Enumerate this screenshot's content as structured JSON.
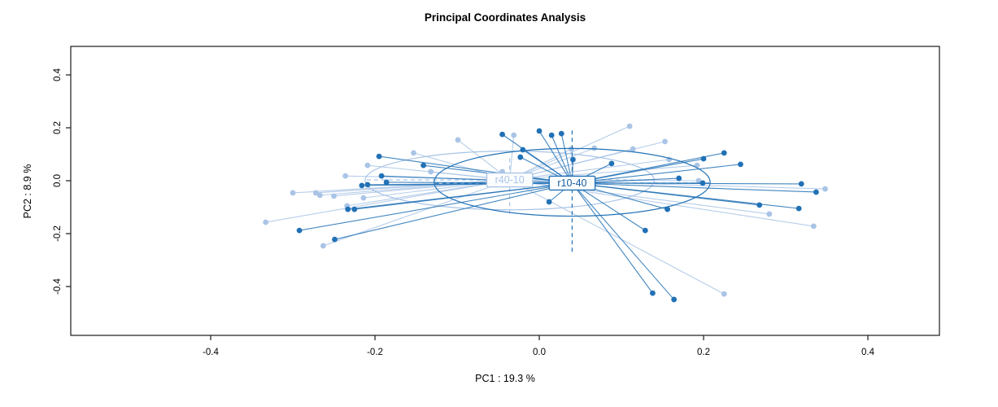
{
  "title": "Principal Coordinates Analysis",
  "axes": {
    "x_label": "PC1 : 19.3 %",
    "y_label": "PC2 : 8.9 %",
    "x_tick_labels": [
      "-0.4",
      "-0.2",
      "0.0",
      "0.2",
      "0.4"
    ],
    "x_tick_values": [
      -0.4,
      -0.2,
      0.0,
      0.2,
      0.4
    ],
    "y_tick_labels": [
      "-0.4",
      "-0.2",
      "0.0",
      "0.2",
      "0.4"
    ],
    "y_tick_values": [
      -0.4,
      -0.2,
      0.0,
      0.2,
      0.4
    ],
    "axis_color": "#1a1a1a"
  },
  "chart_data": {
    "type": "scatter",
    "subtype": "pcoa-ordination-spider",
    "title": "Principal Coordinates Analysis",
    "xlabel": "PC1 : 19.3 %",
    "ylabel": "PC2 : 8.9 %",
    "xlim": [
      -0.5703,
      0.4871
    ],
    "ylim": [
      -0.5846,
      0.5077
    ],
    "grid": false,
    "legend": "none (group labels drawn at centroids)",
    "groups": [
      {
        "name": "r40-10",
        "color": "#a9c4e6",
        "label_text_color": "#a9c4e6",
        "centroid": [
          -0.036,
          0.003
        ],
        "ellipse": {
          "cx": -0.036,
          "cy": 0.001,
          "rx": 0.176,
          "ry": 0.111
        },
        "cross": {
          "h": [
            -0.21,
            0.14
          ],
          "v": [
            0.085,
            -0.135
          ]
        },
        "points": [
          [
            -0.153,
            0.105
          ],
          [
            -0.209,
            0.058
          ],
          [
            -0.132,
            0.034
          ],
          [
            -0.236,
            0.018
          ],
          [
            -0.3,
            -0.046
          ],
          [
            -0.272,
            -0.046
          ],
          [
            -0.267,
            -0.055
          ],
          [
            -0.25,
            -0.058
          ],
          [
            -0.214,
            -0.065
          ],
          [
            -0.234,
            -0.095
          ],
          [
            -0.333,
            -0.157
          ],
          [
            -0.263,
            -0.246
          ],
          [
            -0.099,
            0.154
          ],
          [
            -0.031,
            0.172
          ],
          [
            -0.045,
            0.034
          ],
          [
            0.039,
            0.12
          ],
          [
            0.067,
            0.123
          ],
          [
            0.11,
            0.206
          ],
          [
            0.114,
            0.12
          ],
          [
            0.153,
            0.148
          ],
          [
            0.158,
            0.08
          ],
          [
            0.192,
            0.058
          ],
          [
            0.194,
            0.0
          ],
          [
            0.348,
            -0.031
          ],
          [
            0.28,
            -0.126
          ],
          [
            0.334,
            -0.172
          ],
          [
            0.225,
            -0.428
          ]
        ]
      },
      {
        "name": "r10-40",
        "color": "#2171b5",
        "label_text_color": "#1b5fa0",
        "centroid": [
          0.04,
          -0.009
        ],
        "ellipse": {
          "cx": 0.04,
          "cy": -0.006,
          "rx": 0.168,
          "ry": 0.128
        },
        "cross": {
          "h": [
            -0.127,
            0.207
          ],
          "v": [
            0.19,
            -0.27
          ]
        },
        "points": [
          [
            -0.195,
            0.092
          ],
          [
            -0.141,
            0.058
          ],
          [
            -0.192,
            0.018
          ],
          [
            -0.186,
            -0.006
          ],
          [
            -0.216,
            -0.018
          ],
          [
            -0.209,
            -0.015
          ],
          [
            -0.233,
            -0.108
          ],
          [
            -0.225,
            -0.108
          ],
          [
            -0.292,
            -0.188
          ],
          [
            -0.249,
            -0.222
          ],
          [
            -0.045,
            0.175
          ],
          [
            0.0,
            0.188
          ],
          [
            0.015,
            0.172
          ],
          [
            0.027,
            0.178
          ],
          [
            -0.02,
            0.117
          ],
          [
            -0.023,
            0.089
          ],
          [
            0.041,
            0.08
          ],
          [
            0.088,
            0.065
          ],
          [
            0.012,
            -0.08
          ],
          [
            0.129,
            -0.188
          ],
          [
            0.225,
            0.105
          ],
          [
            0.2,
            0.083
          ],
          [
            0.245,
            0.062
          ],
          [
            0.17,
            0.009
          ],
          [
            0.199,
            -0.009
          ],
          [
            0.319,
            -0.012
          ],
          [
            0.337,
            -0.043
          ],
          [
            0.316,
            -0.105
          ],
          [
            0.268,
            -0.092
          ],
          [
            0.156,
            -0.108
          ],
          [
            0.138,
            -0.425
          ],
          [
            0.164,
            -0.449
          ]
        ]
      }
    ]
  }
}
